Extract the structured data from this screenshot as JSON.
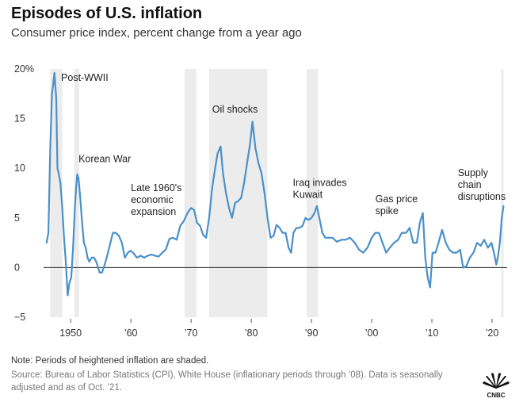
{
  "header": {
    "title": "Episodes of U.S. inflation",
    "subtitle": "Consumer price index, percent change from a year ago"
  },
  "footer": {
    "note": "Note: Periods of heightened inflation are shaded.",
    "source": "Source: Bureau of Labor Statistics (CPI), White House (inflationary periods through ’08). Data is seasonally adjusted and as of Oct. ’21.",
    "logo_text": "CNBC"
  },
  "colors": {
    "line": "#4a90c9",
    "shade": "#ececec",
    "zero_line": "#222222",
    "grid": "#dddddd"
  },
  "chart_data": {
    "type": "line",
    "title": "Episodes of U.S. inflation",
    "subtitle": "Consumer price index, percent change from a year ago",
    "xlabel": "",
    "ylabel": "",
    "xlim": [
      1945.5,
      2022.5
    ],
    "ylim": [
      -5,
      20
    ],
    "yticks": [
      {
        "value": 20,
        "label": "20%"
      },
      {
        "value": 15,
        "label": "15"
      },
      {
        "value": 10,
        "label": "10"
      },
      {
        "value": 5,
        "label": "5"
      },
      {
        "value": 0,
        "label": "0"
      },
      {
        "value": -5,
        "label": "−5"
      }
    ],
    "xticks": [
      {
        "value": 1950,
        "label": "1950"
      },
      {
        "value": 1960,
        "label": "’60"
      },
      {
        "value": 1970,
        "label": "’70"
      },
      {
        "value": 1980,
        "label": "’80"
      },
      {
        "value": 1990,
        "label": "’90"
      },
      {
        "value": 2000,
        "label": "’00"
      },
      {
        "value": 2010,
        "label": "’10"
      },
      {
        "value": 2020,
        "label": "’20"
      }
    ],
    "shaded_periods": [
      {
        "start": 1946.6,
        "end": 1948.6
      },
      {
        "start": 1950.6,
        "end": 1951.4
      },
      {
        "start": 1968.9,
        "end": 1970.9
      },
      {
        "start": 1973.0,
        "end": 1982.7
      },
      {
        "start": 1989.2,
        "end": 1991.1
      },
      {
        "start": 2021.5,
        "end": 2021.9
      }
    ],
    "annotations": [
      {
        "text": "Post-WWII",
        "x": 1948.4,
        "y": 18.8
      },
      {
        "text": "Korean War",
        "x": 1951.3,
        "y": 10.6
      },
      {
        "text": "Late 1960's\neconomic\nexpansion",
        "x": 1960.0,
        "y": 7.7
      },
      {
        "text": "Oil shocks",
        "x": 1973.5,
        "y": 15.6
      },
      {
        "text": "Iraq invades\nKuwait",
        "x": 1986.9,
        "y": 8.2
      },
      {
        "text": "Gas price\nspike",
        "x": 2000.6,
        "y": 6.6
      },
      {
        "text": "Supply\nchain\ndisruptions",
        "x": 2014.3,
        "y": 9.2
      }
    ],
    "series": [
      {
        "name": "CPI, percent change from a year ago",
        "x": [
          1946.0,
          1946.3,
          1946.6,
          1946.9,
          1947.1,
          1947.3,
          1947.6,
          1947.8,
          1948.0,
          1948.3,
          1948.6,
          1948.9,
          1949.2,
          1949.5,
          1949.8,
          1950.1,
          1950.4,
          1950.7,
          1950.9,
          1951.1,
          1951.3,
          1951.6,
          1951.9,
          1952.2,
          1952.5,
          1952.8,
          1953.1,
          1953.5,
          1953.9,
          1954.3,
          1954.8,
          1955.2,
          1955.7,
          1956.2,
          1956.6,
          1957.0,
          1957.5,
          1958.0,
          1958.5,
          1959.0,
          1959.5,
          1960.0,
          1960.5,
          1961.0,
          1961.6,
          1962.2,
          1962.8,
          1963.4,
          1964.0,
          1964.6,
          1965.2,
          1965.8,
          1966.4,
          1967.0,
          1967.6,
          1968.2,
          1968.8,
          1969.4,
          1970.0,
          1970.5,
          1971.0,
          1971.5,
          1972.0,
          1972.5,
          1973.0,
          1973.5,
          1974.0,
          1974.4,
          1974.9,
          1975.3,
          1975.8,
          1976.3,
          1976.8,
          1977.3,
          1977.8,
          1978.3,
          1978.8,
          1979.3,
          1979.8,
          1980.2,
          1980.7,
          1981.2,
          1981.7,
          1982.2,
          1982.7,
          1983.2,
          1983.7,
          1984.2,
          1984.7,
          1985.2,
          1985.7,
          1986.2,
          1986.6,
          1987.0,
          1987.5,
          1988.0,
          1988.5,
          1989.0,
          1989.5,
          1990.0,
          1990.5,
          1990.9,
          1991.3,
          1991.8,
          1992.3,
          1992.8,
          1993.5,
          1994.2,
          1995.0,
          1995.7,
          1996.4,
          1997.2,
          1997.9,
          1998.6,
          1999.3,
          2000.0,
          2000.6,
          2001.2,
          2001.8,
          2002.4,
          2003.0,
          2003.7,
          2004.4,
          2005.0,
          2005.7,
          2006.3,
          2006.9,
          2007.5,
          2008.0,
          2008.5,
          2008.9,
          2009.3,
          2009.7,
          2010.1,
          2010.6,
          2011.1,
          2011.7,
          2012.3,
          2012.9,
          2013.5,
          2014.1,
          2014.7,
          2015.2,
          2015.7,
          2016.3,
          2016.9,
          2017.5,
          2018.1,
          2018.7,
          2019.3,
          2019.9,
          2020.3,
          2020.7,
          2021.0,
          2021.3,
          2021.6,
          2021.9
        ],
        "values": [
          2.5,
          3.5,
          12.0,
          17.5,
          18.5,
          19.6,
          17.0,
          10.0,
          9.5,
          8.5,
          6.0,
          3.0,
          0.5,
          -2.8,
          -1.5,
          -1.0,
          2.0,
          6.0,
          8.0,
          9.4,
          9.0,
          7.0,
          4.5,
          2.5,
          2.0,
          1.0,
          0.6,
          1.0,
          1.0,
          0.5,
          -0.5,
          -0.5,
          0.4,
          1.5,
          2.5,
          3.5,
          3.5,
          3.2,
          2.5,
          1.0,
          1.5,
          1.7,
          1.4,
          1.0,
          1.2,
          1.0,
          1.2,
          1.3,
          1.2,
          1.1,
          1.5,
          1.8,
          2.9,
          3.0,
          2.8,
          4.2,
          4.7,
          5.5,
          6.0,
          5.8,
          4.5,
          4.2,
          3.3,
          3.0,
          5.0,
          8.0,
          10.0,
          11.5,
          12.2,
          9.5,
          7.5,
          6.0,
          5.0,
          6.5,
          6.7,
          7.0,
          8.5,
          10.5,
          12.5,
          14.7,
          12.0,
          10.5,
          9.5,
          7.5,
          5.0,
          3.0,
          3.2,
          4.3,
          4.0,
          3.5,
          3.5,
          2.0,
          1.5,
          3.5,
          4.0,
          4.0,
          4.2,
          5.0,
          4.8,
          5.0,
          5.5,
          6.2,
          5.0,
          3.5,
          3.0,
          3.0,
          3.0,
          2.6,
          2.8,
          2.8,
          3.0,
          2.5,
          1.8,
          1.5,
          2.0,
          3.0,
          3.5,
          3.5,
          2.5,
          1.5,
          2.0,
          2.5,
          2.8,
          3.5,
          3.5,
          4.0,
          2.5,
          2.5,
          4.5,
          5.5,
          1.0,
          -1.0,
          -2.0,
          1.5,
          1.5,
          2.5,
          3.8,
          2.5,
          1.8,
          1.5,
          1.5,
          1.8,
          0.0,
          0.1,
          1.0,
          1.5,
          2.5,
          2.2,
          2.8,
          2.0,
          2.5,
          1.5,
          0.3,
          1.2,
          2.6,
          5.0,
          6.2
        ]
      }
    ]
  }
}
